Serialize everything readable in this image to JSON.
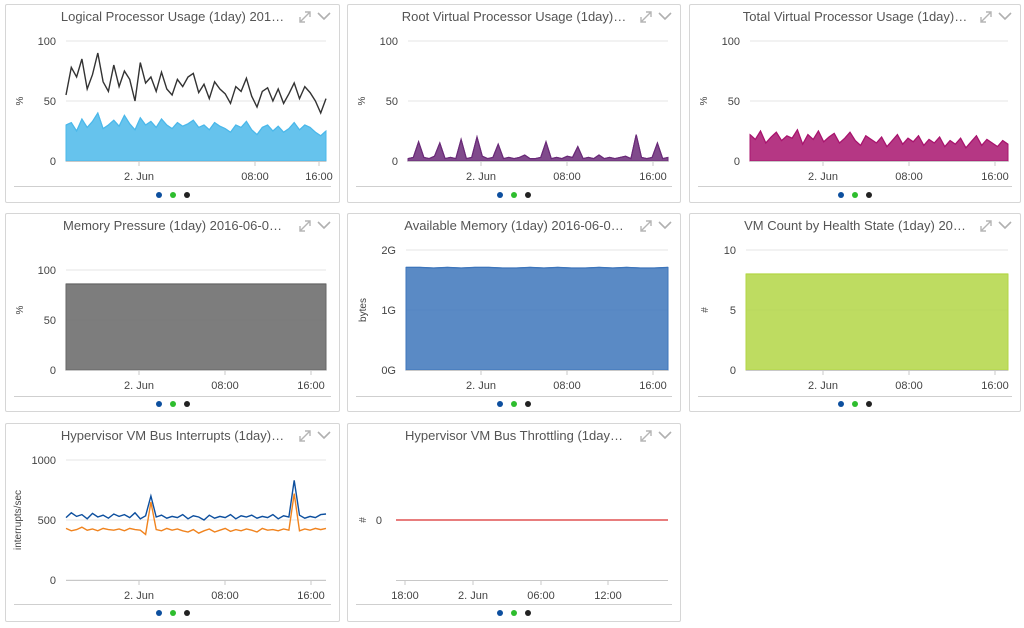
{
  "colors": {
    "dot_blue": "#0d4f9e",
    "dot_green": "#2ebd2e",
    "dot_black": "#222222"
  },
  "panels": [
    {
      "title": "Logical Processor Usage (1day) 201…",
      "ylabel": "%",
      "yticks": [
        "100",
        "50",
        "0"
      ],
      "xticks": [
        "2. Jun",
        "08:00",
        "16:00"
      ],
      "chart_data": {
        "type": "area",
        "ylim": [
          0,
          100
        ],
        "xticks": [
          "2. Jun",
          "08:00",
          "16:00"
        ],
        "series": [
          {
            "role": "fill",
            "color": "#4bb8ea",
            "values": [
              30,
              32,
              25,
              35,
              28,
              33,
              40,
              27,
              30,
              34,
              29,
              38,
              31,
              26,
              36,
              30,
              33,
              28,
              35,
              30,
              27,
              32,
              29,
              31,
              34,
              28,
              30,
              26,
              32,
              29,
              27,
              24,
              30,
              28,
              33,
              26,
              22,
              28,
              30,
              25,
              29,
              24,
              27,
              32,
              26,
              30,
              28,
              24,
              21,
              25
            ]
          },
          {
            "role": "line",
            "color": "#333333",
            "values": [
              55,
              78,
              70,
              85,
              60,
              72,
              90,
              66,
              58,
              80,
              62,
              75,
              68,
              50,
              82,
              65,
              70,
              58,
              74,
              60,
              55,
              68,
              62,
              70,
              73,
              57,
              64,
              52,
              66,
              60,
              56,
              48,
              62,
              58,
              69,
              54,
              45,
              58,
              61,
              50,
              60,
              48,
              56,
              65,
              52,
              62,
              57,
              50,
              40,
              52
            ]
          }
        ]
      }
    },
    {
      "title": "Root Virtual Processor Usage (1day)…",
      "ylabel": "%",
      "yticks": [
        "100",
        "50",
        "0"
      ],
      "xticks": [
        "2. Jun",
        "08:00",
        "16:00"
      ],
      "chart_data": {
        "type": "area",
        "ylim": [
          0,
          100
        ],
        "xticks": [
          "2. Jun",
          "08:00",
          "16:00"
        ],
        "series": [
          {
            "role": "fill",
            "color": "#6a2a78",
            "values": [
              2,
              3,
              16,
              3,
              2,
              4,
              15,
              2,
              3,
              2,
              18,
              2,
              3,
              20,
              4,
              2,
              3,
              14,
              2,
              3,
              2,
              3,
              5,
              2,
              2,
              3,
              16,
              2,
              3,
              2,
              4,
              3,
              12,
              2,
              3,
              2,
              5,
              2,
              3,
              2,
              3,
              4,
              2,
              22,
              3,
              2,
              3,
              15,
              2,
              3
            ]
          }
        ]
      }
    },
    {
      "title": "Total Virtual Processor Usage (1day)…",
      "ylabel": "%",
      "yticks": [
        "100",
        "50",
        "0"
      ],
      "xticks": [
        "2. Jun",
        "08:00",
        "16:00"
      ],
      "chart_data": {
        "type": "area",
        "ylim": [
          0,
          100
        ],
        "xticks": [
          "2. Jun",
          "08:00",
          "16:00"
        ],
        "series": [
          {
            "role": "fill",
            "color": "#a8146e",
            "values": [
              22,
              18,
              25,
              15,
              20,
              24,
              17,
              21,
              19,
              26,
              14,
              22,
              18,
              25,
              16,
              20,
              23,
              15,
              19,
              24,
              17,
              13,
              21,
              18,
              15,
              20,
              12,
              17,
              22,
              14,
              19,
              16,
              21,
              13,
              18,
              15,
              20,
              12,
              17,
              14,
              19,
              11,
              16,
              21,
              13,
              18,
              15,
              12,
              17,
              14
            ]
          }
        ]
      }
    },
    {
      "title": "Memory Pressure (1day) 2016-06-0…",
      "ylabel": "%",
      "yticks": [
        "100",
        "50",
        "0"
      ],
      "xticks": [
        "2. Jun",
        "08:00",
        "16:00"
      ],
      "chart_data": {
        "type": "area",
        "ylim": [
          0,
          100
        ],
        "xticks": [
          "2. Jun",
          "08:00",
          "16:00"
        ],
        "series": [
          {
            "role": "fill",
            "color": "#666666",
            "values": [
              86,
              86,
              86,
              86,
              86,
              86,
              86,
              86,
              86,
              86,
              86,
              86,
              86,
              86,
              86,
              86,
              86,
              86,
              86,
              86
            ]
          }
        ]
      }
    },
    {
      "title": "Available Memory (1day) 2016-06-0…",
      "ylabel": "bytes",
      "yticks": [
        "2G",
        "1G",
        "0G"
      ],
      "xticks": [
        "2. Jun",
        "08:00",
        "16:00"
      ],
      "chart_data": {
        "type": "area",
        "ylim": [
          0,
          2
        ],
        "xticks": [
          "2. Jun",
          "08:00",
          "16:00"
        ],
        "series": [
          {
            "role": "fill",
            "color": "#3d75bb",
            "values": [
              1.71,
              1.71,
              1.7,
              1.71,
              1.7,
              1.71,
              1.71,
              1.7,
              1.7,
              1.71,
              1.7,
              1.71,
              1.7,
              1.7,
              1.71,
              1.7,
              1.71,
              1.7,
              1.7,
              1.71
            ]
          }
        ]
      }
    },
    {
      "title": "VM Count by Health State (1day) 20…",
      "ylabel": "#",
      "yticks": [
        "10",
        "5",
        "0"
      ],
      "xticks": [
        "2. Jun",
        "08:00",
        "16:00"
      ],
      "chart_data": {
        "type": "area",
        "ylim": [
          0,
          10
        ],
        "xticks": [
          "2. Jun",
          "08:00",
          "16:00"
        ],
        "series": [
          {
            "role": "fill",
            "color": "#b3d645",
            "values": [
              8,
              8,
              8,
              8,
              8,
              8,
              8,
              8,
              8,
              8,
              8,
              8,
              8,
              8,
              8,
              8,
              8,
              8,
              8,
              8
            ]
          }
        ]
      }
    },
    {
      "title": "Hypervisor VM Bus Interrupts (1day)…",
      "ylabel": "interrupts/sec",
      "yticks": [
        "1000",
        "500",
        "0"
      ],
      "xticks": [
        "2. Jun",
        "08:00",
        "16:00"
      ],
      "chart_data": {
        "type": "line",
        "ylim": [
          0,
          1000
        ],
        "xticks": [
          "2. Jun",
          "08:00",
          "16:00"
        ],
        "series": [
          {
            "role": "line",
            "color": "#0d4f9e",
            "values": [
              520,
              560,
              530,
              545,
              510,
              555,
              525,
              540,
              515,
              550,
              530,
              545,
              520,
              560,
              510,
              535,
              700,
              525,
              540,
              515,
              530,
              520,
              545,
              510,
              535,
              525,
              500,
              540,
              515,
              530,
              520,
              545,
              510,
              535,
              525,
              540,
              515,
              530,
              520,
              545,
              510,
              535,
              525,
              830,
              540,
              515,
              530,
              520,
              545,
              550
            ]
          },
          {
            "role": "line",
            "color": "#f0831e",
            "values": [
              430,
              410,
              420,
              440,
              415,
              425,
              410,
              430,
              420,
              415,
              425,
              410,
              430,
              420,
              415,
              380,
              650,
              420,
              410,
              430,
              415,
              425,
              410,
              400,
              420,
              390,
              410,
              425,
              400,
              415,
              430,
              405,
              420,
              410,
              425,
              415,
              400,
              430,
              415,
              420,
              410,
              425,
              415,
              720,
              410,
              425,
              415,
              430,
              420,
              430
            ]
          }
        ]
      }
    },
    {
      "title": "Hypervisor VM Bus Throttling (1day…",
      "ylabel": "#",
      "yticks": [
        "0"
      ],
      "xticks": [
        "18:00",
        "2. Jun",
        "06:00",
        "12:00"
      ],
      "chart_data": {
        "type": "line",
        "ylim": [
          -1,
          1
        ],
        "xticks": [
          "18:00",
          "2. Jun",
          "06:00",
          "12:00"
        ],
        "series": [
          {
            "role": "line",
            "color": "#e05252",
            "values": [
              0,
              0,
              0,
              0,
              0,
              0,
              0,
              0,
              0,
              0
            ]
          }
        ]
      }
    }
  ]
}
